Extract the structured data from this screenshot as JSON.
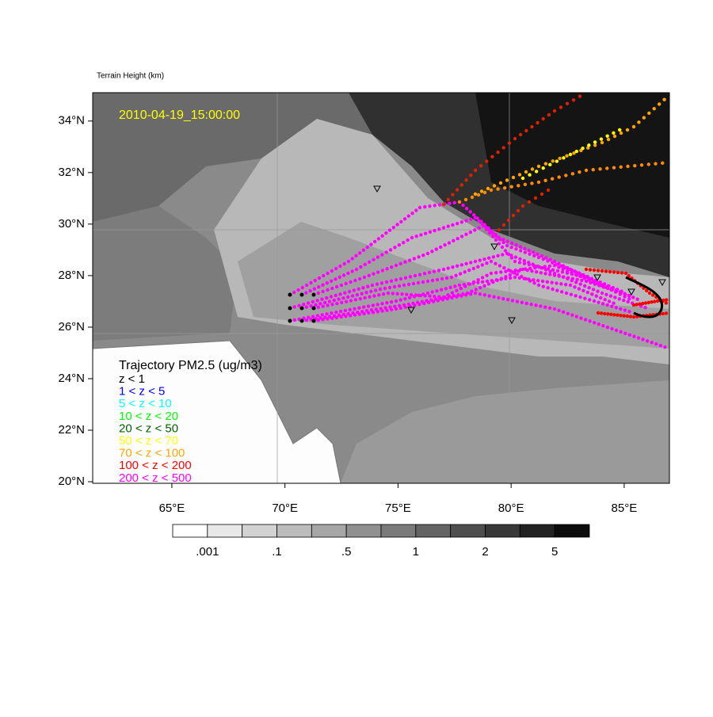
{
  "map": {
    "title": "Terrain Height   (km)",
    "timestamp": "2010-04-19_15:00:00",
    "xlim": [
      61.5,
      87.0
    ],
    "ylim": [
      19.94,
      35.1
    ],
    "lat_ticks": [
      {
        "value": 34,
        "label": "34°N"
      },
      {
        "value": 32,
        "label": "32°N"
      },
      {
        "value": 30,
        "label": "30°N"
      },
      {
        "value": 28,
        "label": "28°N"
      },
      {
        "value": 26,
        "label": "26°N"
      },
      {
        "value": 24,
        "label": "24°N"
      },
      {
        "value": 22,
        "label": "22°N"
      },
      {
        "value": 20,
        "label": "20°N"
      }
    ],
    "lon_ticks": [
      {
        "value": 65,
        "label": "65°E"
      },
      {
        "value": 70,
        "label": "70°E"
      },
      {
        "value": 75,
        "label": "75°E"
      },
      {
        "value": 80,
        "label": "80°E"
      },
      {
        "value": 85,
        "label": "85°E"
      }
    ],
    "colorbar": {
      "colors": [
        "#ffffff",
        "#e8e8e8",
        "#d2d2d2",
        "#bcbcbc",
        "#a6a6a6",
        "#909090",
        "#7a7a7a",
        "#646464",
        "#4e4e4e",
        "#383838",
        "#222222",
        "#0c0c0c"
      ],
      "labels": [
        ".001",
        ".1",
        ".5",
        "1",
        "2",
        "5"
      ]
    },
    "legend": {
      "title": "Trajectory PM2.5 (ug/m3)",
      "items": [
        {
          "label": "z < 1",
          "color": "#000000"
        },
        {
          "label": "1 < z < 5",
          "color": "#0000ff"
        },
        {
          "label": "5 < z < 10",
          "color": "#00ffff"
        },
        {
          "label": "10 < z < 20",
          "color": "#00ff00"
        },
        {
          "label": "20 < z < 50",
          "color": "#006400"
        },
        {
          "label": "50 < z < 70",
          "color": "#ffff00"
        },
        {
          "label": "70 < z < 100",
          "color": "#ffa500"
        },
        {
          "label": "100 < z < 200",
          "color": "#ff0000"
        },
        {
          "label": "200 < z < 500",
          "color": "#ff00ff"
        }
      ]
    }
  }
}
